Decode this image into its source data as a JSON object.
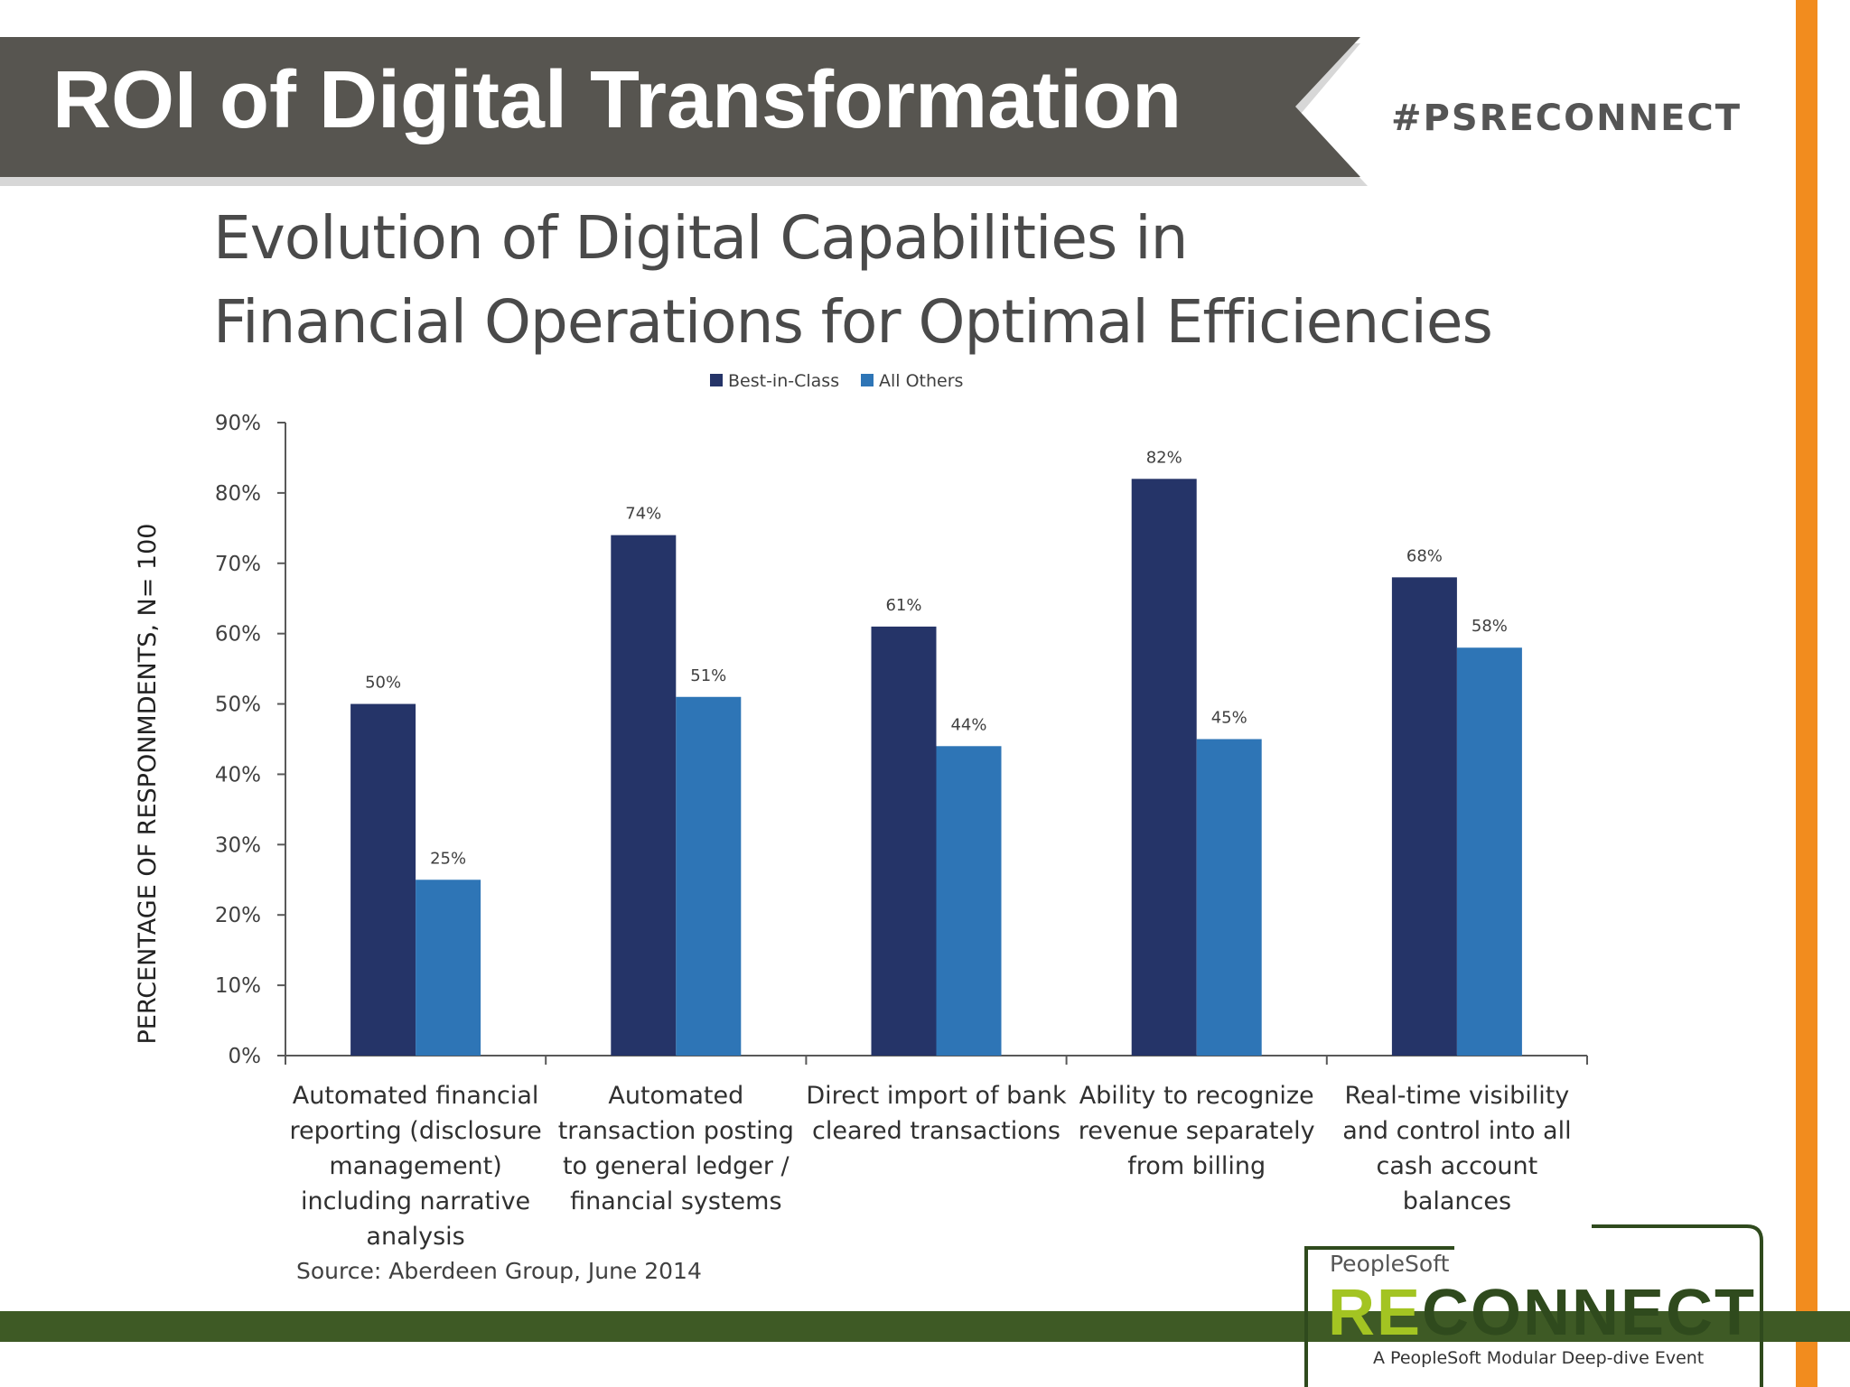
{
  "header": {
    "title": "ROI of Digital Transformation",
    "hashtag": "#PSRECONNECT"
  },
  "subtitle": {
    "line1": "Evolution of Digital Capabilities in",
    "line2": "Financial Operations for Optimal Efficiencies"
  },
  "source": "Source: Aberdeen Group, June 2014",
  "logo": {
    "brand": "PeopleSoft",
    "name_re": "RE",
    "name_rest": "CONNECT",
    "tagline": "A PeopleSoft Modular Deep-dive Event"
  },
  "colors": {
    "header_band": "#575550",
    "orange_accent": "#f28c1e",
    "green_accent": "#3e5a25",
    "best_in_class": "#253468",
    "all_others": "#2e75b6"
  },
  "chart_data": {
    "type": "bar",
    "ylabel": "PERCENTAGE OF RESPONMDENTS, N= 100",
    "ylim": [
      0,
      90
    ],
    "yticks": [
      "0%",
      "10%",
      "20%",
      "30%",
      "40%",
      "50%",
      "60%",
      "70%",
      "80%",
      "90%"
    ],
    "legend_position": "top-center",
    "grid": false,
    "categories": [
      [
        "Automated financial",
        "reporting (disclosure",
        "management)",
        "including narrative",
        "analysis"
      ],
      [
        "Automated",
        "transaction posting",
        "to general ledger /",
        "financial systems"
      ],
      [
        "Direct import of bank",
        "cleared transactions"
      ],
      [
        "Ability to recognize",
        "revenue separately",
        "from billing"
      ],
      [
        "Real-time visibility",
        "and control into all",
        "cash account",
        "balances"
      ]
    ],
    "series": [
      {
        "name": "Best-in-Class",
        "values": [
          50,
          74,
          61,
          82,
          68
        ],
        "labels": [
          "50%",
          "74%",
          "61%",
          "82%",
          "68%"
        ],
        "color": "#253468"
      },
      {
        "name": "All Others",
        "values": [
          25,
          51,
          44,
          45,
          58
        ],
        "labels": [
          "25%",
          "51%",
          "44%",
          "45%",
          "58%"
        ],
        "color": "#2e75b6"
      }
    ]
  }
}
